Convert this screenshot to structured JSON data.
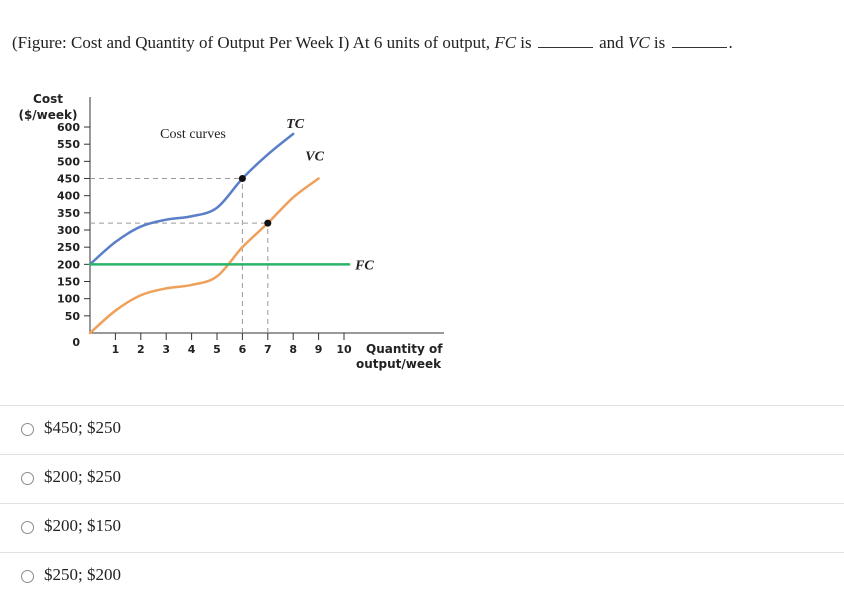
{
  "question": {
    "text_before": "(Figure: Cost and Quantity of Output Per Week I) At 6 units of output, ",
    "fc_term": "FC",
    "is_1": " is ",
    "and": " and ",
    "vc_term": "VC",
    "is_2": " is ",
    "end": "."
  },
  "options": [
    {
      "label": "$450; $250"
    },
    {
      "label": "$200; $250"
    },
    {
      "label": "$200; $150"
    },
    {
      "label": "$250; $200"
    }
  ],
  "chart_data": {
    "type": "line",
    "title": "Cost curves",
    "ylabel_line1": "Cost",
    "ylabel_line2": "($/week)",
    "xlabel_line1": "Quantity of",
    "xlabel_line2": "output/week",
    "xlim": [
      0,
      10
    ],
    "ylim": [
      0,
      600
    ],
    "x_ticks": [
      1,
      2,
      3,
      4,
      5,
      6,
      7,
      8,
      9,
      10
    ],
    "y_ticks": [
      50,
      100,
      150,
      200,
      250,
      300,
      350,
      400,
      450,
      500,
      550,
      600
    ],
    "origin_label": "0",
    "series": [
      {
        "name": "TC",
        "color": "#5b7fc7",
        "points": [
          [
            0,
            200
          ],
          [
            1,
            265
          ],
          [
            2,
            310
          ],
          [
            3,
            330
          ],
          [
            4,
            340
          ],
          [
            5,
            365
          ],
          [
            6,
            450
          ],
          [
            7,
            520
          ],
          [
            8,
            580
          ]
        ]
      },
      {
        "name": "VC",
        "color": "#f0a05a",
        "points": [
          [
            0,
            0
          ],
          [
            1,
            65
          ],
          [
            2,
            110
          ],
          [
            3,
            130
          ],
          [
            4,
            140
          ],
          [
            5,
            165
          ],
          [
            6,
            250
          ],
          [
            7,
            320
          ],
          [
            8,
            395
          ],
          [
            9,
            450
          ]
        ]
      },
      {
        "name": "FC",
        "color": "#2cb36a",
        "points": [
          [
            0,
            200
          ],
          [
            10.2,
            200
          ]
        ]
      }
    ],
    "markers": [
      {
        "x": 6,
        "y": 450
      },
      {
        "x": 7,
        "y": 320
      }
    ],
    "guides": [
      {
        "from": [
          0,
          450
        ],
        "to": [
          6,
          450
        ]
      },
      {
        "from": [
          6,
          0
        ],
        "to": [
          6,
          450
        ]
      },
      {
        "from": [
          0,
          320
        ],
        "to": [
          7,
          320
        ]
      },
      {
        "from": [
          7,
          0
        ],
        "to": [
          7,
          320
        ]
      }
    ]
  }
}
